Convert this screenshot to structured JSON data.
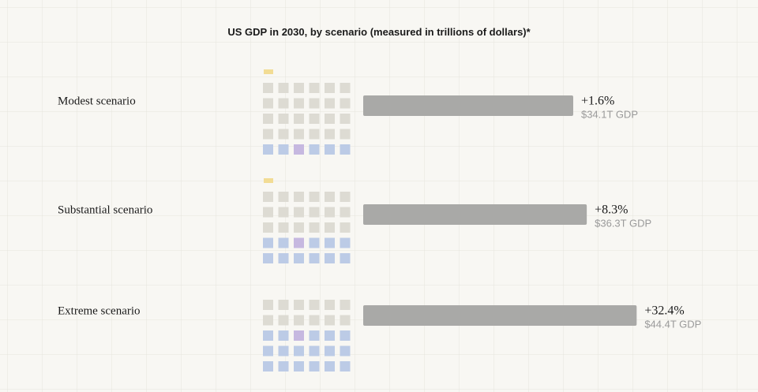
{
  "chart_data": {
    "type": "bar",
    "orientation": "horizontal",
    "title": "US GDP in 2030, by scenario (measured in trillions of dollars)*",
    "categories": [
      "Modest scenario",
      "Substantial scenario",
      "Extreme scenario"
    ],
    "values": [
      34.1,
      36.3,
      44.4
    ],
    "value_labels": [
      "$34.1T GDP",
      "$36.3T GDP",
      "$44.4T GDP"
    ],
    "growth": [
      1.6,
      8.3,
      32.4
    ],
    "growth_labels": [
      "+1.6%",
      "+8.3%",
      "+32.4%"
    ],
    "color": "#a9a9a7"
  }
}
